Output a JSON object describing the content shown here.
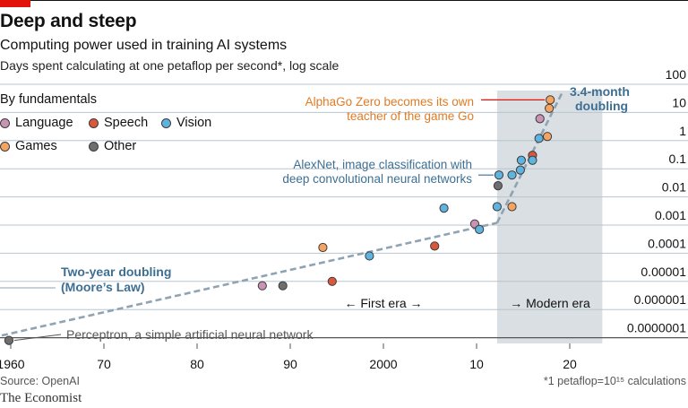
{
  "header": {
    "title": "Deep and steep",
    "subtitle": "Computing power used in training AI systems",
    "subsubtitle": "Days spent calculating at one petaflop per second*, log scale"
  },
  "legend": {
    "title": "By fundamentals",
    "items": [
      {
        "name": "Language",
        "color": "#c993b4"
      },
      {
        "name": "Speech",
        "color": "#d9583c"
      },
      {
        "name": "Vision",
        "color": "#5fb4df"
      },
      {
        "name": "Games",
        "color": "#f4a460"
      },
      {
        "name": "Other",
        "color": "#6e6e6e"
      }
    ]
  },
  "footer": {
    "source": "Source: OpenAI",
    "note": "*1 petaflop=10¹⁵ calculations",
    "brand": "The Economist"
  },
  "chart_data": {
    "type": "scatter",
    "xlabel": "",
    "ylabel": "",
    "ylog": true,
    "xlim": [
      1958,
      2033
    ],
    "ylim": [
      1e-07,
      100
    ],
    "x_ticks": [
      1960,
      1970,
      1980,
      1990,
      2000,
      2010,
      2020
    ],
    "x_tick_labels": [
      "1960",
      "70",
      "80",
      "90",
      "2000",
      "10",
      "20"
    ],
    "y_ticks": [
      1e-07,
      1e-06,
      1e-05,
      0.0001,
      0.001,
      0.01,
      0.1,
      1,
      10,
      100
    ],
    "y_tick_labels": [
      "0.0000001",
      "0.000001",
      "0.00001",
      "0.0001",
      "0.001",
      "0.01",
      "0.1",
      "1",
      "10",
      "100"
    ],
    "grid": true,
    "legend_position": "top-left",
    "shaded_region": {
      "from": 2012.2,
      "to": 2023.5,
      "label": "Modern era"
    },
    "era_labels": {
      "first": "← First era →",
      "modern": "→ Modern era"
    },
    "points": [
      {
        "x": 1959.8,
        "y": 8e-08,
        "category": "Other"
      },
      {
        "x": 1987,
        "y": 7e-06,
        "category": "Language"
      },
      {
        "x": 1989.2,
        "y": 7e-06,
        "category": "Other"
      },
      {
        "x": 1993.5,
        "y": 0.00016,
        "category": "Games"
      },
      {
        "x": 1994.5,
        "y": 1e-05,
        "category": "Speech"
      },
      {
        "x": 1998.5,
        "y": 8e-05,
        "category": "Vision"
      },
      {
        "x": 2005.5,
        "y": 0.00018,
        "category": "Speech"
      },
      {
        "x": 2006.5,
        "y": 0.004,
        "category": "Vision"
      },
      {
        "x": 2009.8,
        "y": 0.0011,
        "category": "Language"
      },
      {
        "x": 2010.3,
        "y": 0.0007,
        "category": "Vision"
      },
      {
        "x": 2012.2,
        "y": 0.0045,
        "category": "Vision"
      },
      {
        "x": 2012.3,
        "y": 0.025,
        "category": "Other"
      },
      {
        "x": 2012.4,
        "y": 0.06,
        "category": "Vision"
      },
      {
        "x": 2013.8,
        "y": 0.0045,
        "category": "Games"
      },
      {
        "x": 2013.8,
        "y": 0.06,
        "category": "Vision"
      },
      {
        "x": 2014.7,
        "y": 0.09,
        "category": "Vision"
      },
      {
        "x": 2014.8,
        "y": 0.2,
        "category": "Vision"
      },
      {
        "x": 2016,
        "y": 0.3,
        "category": "Speech"
      },
      {
        "x": 2016,
        "y": 0.2,
        "category": "Vision"
      },
      {
        "x": 2016.7,
        "y": 1.2,
        "category": "Vision"
      },
      {
        "x": 2016.8,
        "y": 6,
        "category": "Language"
      },
      {
        "x": 2017.6,
        "y": 1.4,
        "category": "Games"
      },
      {
        "x": 2017.8,
        "y": 14,
        "category": "Games"
      },
      {
        "x": 2017.9,
        "y": 28,
        "category": "Games"
      }
    ],
    "trend_lines": [
      {
        "name": "Two-year doubling",
        "from": [
          1958,
          1e-07
        ],
        "to": [
          2012.2,
          0.0012
        ]
      },
      {
        "name": "3.4-month doubling",
        "from": [
          2012.2,
          0.0012
        ],
        "to": [
          2019.3,
          60
        ]
      }
    ],
    "annotations": [
      {
        "text": [
          "AlphaGo Zero becomes its own",
          "teacher of the game Go"
        ],
        "target": [
          2017.9,
          28
        ],
        "color": "orange"
      },
      {
        "text": [
          "AlexNet, image classification with",
          "deep convolutional neural networks"
        ],
        "target": [
          2012.4,
          0.06
        ],
        "color": "blue"
      },
      {
        "text": [
          "3.4-month",
          "doubling"
        ],
        "color": "blue"
      },
      {
        "text": [
          "Two-year doubling",
          "(Moore’s Law)"
        ],
        "color": "blue"
      },
      {
        "text": [
          "Perceptron, a simple artificial neural network"
        ],
        "target": [
          1959.8,
          8e-08
        ],
        "color": "grey"
      }
    ]
  }
}
